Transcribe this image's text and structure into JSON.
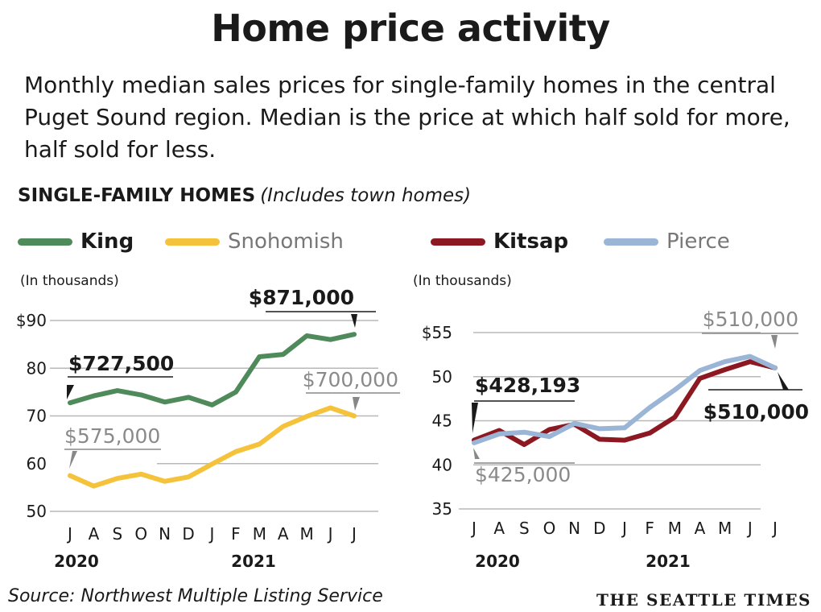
{
  "title": "Home price activity",
  "subtitle": "Monthly median sales prices for single-family homes in the central Puget Sound region. Median is the price at which half sold for more, half sold for less.",
  "section": {
    "heading": "SINGLE-FAMILY HOMES",
    "note": "(Includes town homes)"
  },
  "legend": [
    {
      "name": "King",
      "color": "#4e8a5a"
    },
    {
      "name": "Snohomish",
      "color": "#f5c33b"
    },
    {
      "name": "Kitsap",
      "color": "#8c1822"
    },
    {
      "name": "Pierce",
      "color": "#9bb5d6"
    }
  ],
  "source": "Source: Northwest Multiple Listing Service",
  "brand": "THE SEATTLE TIMES",
  "chart_data": [
    {
      "type": "line",
      "unit_label": "(In thousands)",
      "x": [
        "J",
        "A",
        "S",
        "O",
        "N",
        "D",
        "J",
        "F",
        "M",
        "A",
        "M",
        "J",
        "J"
      ],
      "year_labels": [
        {
          "label": "2020",
          "index": 0
        },
        {
          "label": "2021",
          "index": 7.5
        }
      ],
      "ylim": [
        50,
        90
      ],
      "yticks": [
        50,
        60,
        70,
        80,
        90
      ],
      "ytick_labels": [
        "50",
        "60",
        "70",
        "80",
        "$90"
      ],
      "series": [
        {
          "name": "King",
          "color": "#4e8a5a",
          "values": [
            72.75,
            74.2,
            75.3,
            74.4,
            72.9,
            73.9,
            72.3,
            75.0,
            82.4,
            82.9,
            86.8,
            86.0,
            87.1
          ]
        },
        {
          "name": "Snohomish",
          "color": "#f5c33b",
          "values": [
            57.5,
            55.3,
            56.9,
            57.8,
            56.3,
            57.2,
            59.9,
            62.5,
            64.1,
            67.8,
            69.9,
            71.7,
            70.0
          ]
        }
      ],
      "annotations": [
        {
          "text": "$727,500",
          "series": "King",
          "index": 0,
          "style": "bold"
        },
        {
          "text": "$871,000",
          "series": "King",
          "index": 12,
          "style": "bold"
        },
        {
          "text": "$575,000",
          "series": "Snohomish",
          "index": 0,
          "style": "grey"
        },
        {
          "text": "$700,000",
          "series": "Snohomish",
          "index": 12,
          "style": "grey"
        }
      ]
    },
    {
      "type": "line",
      "unit_label": "(In thousands)",
      "x": [
        "J",
        "A",
        "S",
        "O",
        "N",
        "D",
        "J",
        "F",
        "M",
        "A",
        "M",
        "J",
        "J"
      ],
      "year_labels": [
        {
          "label": "2020",
          "index": 0
        },
        {
          "label": "2021",
          "index": 7.5
        }
      ],
      "ylim": [
        35,
        55
      ],
      "yticks": [
        35,
        40,
        45,
        50,
        55
      ],
      "ytick_labels": [
        "35",
        "40",
        "45",
        "50",
        "$55"
      ],
      "series": [
        {
          "name": "Kitsap",
          "color": "#8c1822",
          "values": [
            42.8,
            43.9,
            42.3,
            44.0,
            44.6,
            42.9,
            42.8,
            43.6,
            45.4,
            49.8,
            50.8,
            51.7,
            51.0
          ]
        },
        {
          "name": "Pierce",
          "color": "#9bb5d6",
          "values": [
            42.5,
            43.5,
            43.7,
            43.2,
            44.7,
            44.1,
            44.2,
            46.5,
            48.5,
            50.7,
            51.7,
            52.3,
            51.0
          ]
        }
      ],
      "annotations": [
        {
          "text": "$428,193",
          "series": "Kitsap",
          "index": 0,
          "style": "bold"
        },
        {
          "text": "$425,000",
          "series": "Pierce",
          "index": 0,
          "style": "grey"
        },
        {
          "text": "$510,000",
          "series": "Pierce",
          "index": 12,
          "style": "grey"
        },
        {
          "text": "$510,000",
          "series": "Kitsap",
          "index": 12,
          "style": "bold"
        }
      ]
    }
  ]
}
